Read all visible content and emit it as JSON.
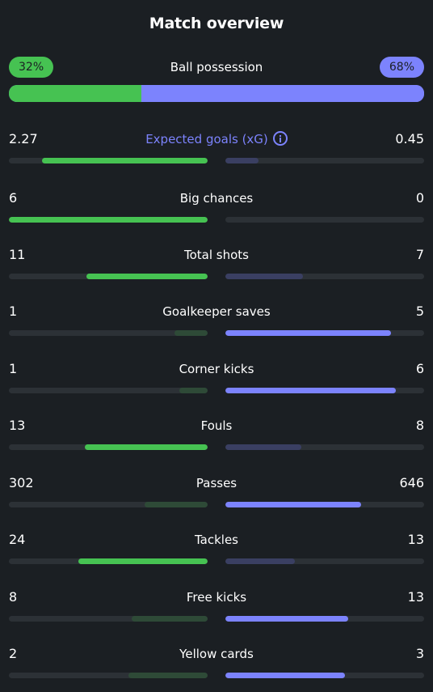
{
  "title": "Match overview",
  "possession": {
    "label": "Ball possession",
    "home": "32%",
    "away": "68%",
    "home_value": 32,
    "away_value": 68
  },
  "colors": {
    "home": "#46c252",
    "away": "#7c83fd",
    "home_muted": "#2e4a37",
    "away_muted": "#3a3f62",
    "track": "#2c3136",
    "background": "#1b1f23"
  },
  "stats": [
    {
      "label": "Expected goals (xG)",
      "home": "2.27",
      "away": "0.45",
      "home_num": 2.27,
      "away_num": 0.45,
      "accent": true,
      "info_icon": "info-icon"
    },
    {
      "label": "Big chances",
      "home": "6",
      "away": "0",
      "home_num": 6,
      "away_num": 0
    },
    {
      "label": "Total shots",
      "home": "11",
      "away": "7",
      "home_num": 11,
      "away_num": 7
    },
    {
      "label": "Goalkeeper saves",
      "home": "1",
      "away": "5",
      "home_num": 1,
      "away_num": 5
    },
    {
      "label": "Corner kicks",
      "home": "1",
      "away": "6",
      "home_num": 1,
      "away_num": 6
    },
    {
      "label": "Fouls",
      "home": "13",
      "away": "8",
      "home_num": 13,
      "away_num": 8
    },
    {
      "label": "Passes",
      "home": "302",
      "away": "646",
      "home_num": 302,
      "away_num": 646
    },
    {
      "label": "Tackles",
      "home": "24",
      "away": "13",
      "home_num": 24,
      "away_num": 13
    },
    {
      "label": "Free kicks",
      "home": "8",
      "away": "13",
      "home_num": 8,
      "away_num": 13
    },
    {
      "label": "Yellow cards",
      "home": "2",
      "away": "3",
      "home_num": 2,
      "away_num": 3
    }
  ]
}
